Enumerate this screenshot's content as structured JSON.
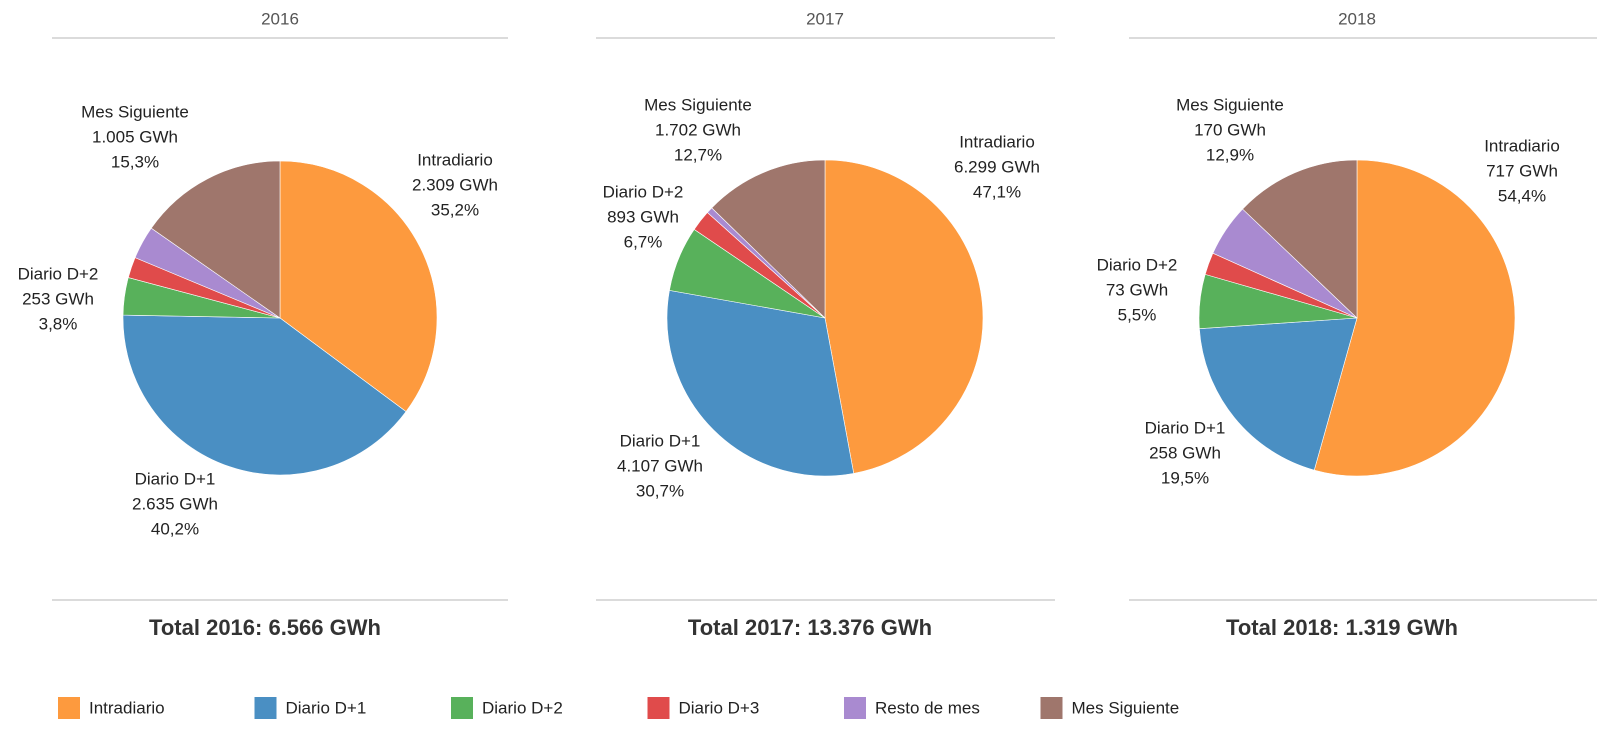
{
  "chart_data": [
    {
      "type": "pie",
      "title": "2016",
      "footer": "Total 2016: 6.566  GWh",
      "categories": [
        "Intradiario",
        "Diario D+1",
        "Diario D+2",
        "Diario D+3",
        "Resto de mes",
        "Mes Siguiente"
      ],
      "values": [
        2309,
        2635,
        253,
        140,
        224,
        1005
      ],
      "value_labels": [
        "2.309 GWh",
        "2.635 GWh",
        "253 GWh",
        null,
        null,
        "1.005 GWh"
      ],
      "percents": [
        35.2,
        40.2,
        3.8,
        null,
        null,
        15.3
      ],
      "percent_labels": [
        "35,2%",
        "40,2%",
        "3,8%",
        null,
        null,
        "15,3%"
      ],
      "colors": [
        "#fd9a3e",
        "#4a8fc3",
        "#58b15b",
        "#e04b4b",
        "#a98ad0",
        "#9f766c"
      ]
    },
    {
      "type": "pie",
      "title": "2017",
      "footer": "Total 2017: 13.376  GWh",
      "categories": [
        "Intradiario",
        "Diario D+1",
        "Diario D+2",
        "Diario D+3",
        "Resto de mes",
        "Mes Siguiente"
      ],
      "values": [
        6299,
        4107,
        893,
        290,
        85,
        1702
      ],
      "value_labels": [
        "6.299 GWh",
        "4.107 GWh",
        "893 GWh",
        null,
        null,
        "1.702 GWh"
      ],
      "percents": [
        47.1,
        30.7,
        6.7,
        null,
        null,
        12.7
      ],
      "percent_labels": [
        "47,1%",
        "30,7%",
        "6,7%",
        null,
        null,
        "12,7%"
      ],
      "colors": [
        "#fd9a3e",
        "#4a8fc3",
        "#58b15b",
        "#e04b4b",
        "#a98ad0",
        "#9f766c"
      ]
    },
    {
      "type": "pie",
      "title": "2018",
      "footer": "Total 2018: 1.319  GWh",
      "categories": [
        "Intradiario",
        "Diario D+1",
        "Diario D+2",
        "Diario D+3",
        "Resto de mes",
        "Mes Siguiente"
      ],
      "values": [
        717,
        258,
        73,
        30,
        71,
        170
      ],
      "value_labels": [
        "717 GWh",
        "258 GWh",
        "73 GWh",
        null,
        null,
        "170 GWh"
      ],
      "percents": [
        54.4,
        19.5,
        5.5,
        null,
        null,
        12.9
      ],
      "percent_labels": [
        "54,4%",
        "19,5%",
        "5,5%",
        null,
        null,
        "12,9%"
      ],
      "colors": [
        "#fd9a3e",
        "#4a8fc3",
        "#58b15b",
        "#e04b4b",
        "#a98ad0",
        "#9f766c"
      ]
    }
  ]
}
